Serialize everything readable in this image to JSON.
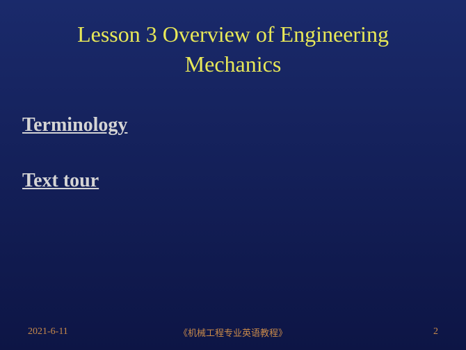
{
  "title": {
    "line1": "Lesson 3  Overview of Engineering",
    "line2": "Mechanics"
  },
  "content": {
    "links": [
      {
        "label": "Terminology"
      },
      {
        "label": "Text tour"
      }
    ]
  },
  "footer": {
    "date": "2021-6-11",
    "center": "《机械工程专业英语教程》",
    "page": "2"
  },
  "colors": {
    "title_color": "#e8e858",
    "link_color": "#d4d4d4",
    "footer_color": "#c98a4a",
    "bg_top": "#1a2a6b",
    "bg_bottom": "#0d1545"
  }
}
